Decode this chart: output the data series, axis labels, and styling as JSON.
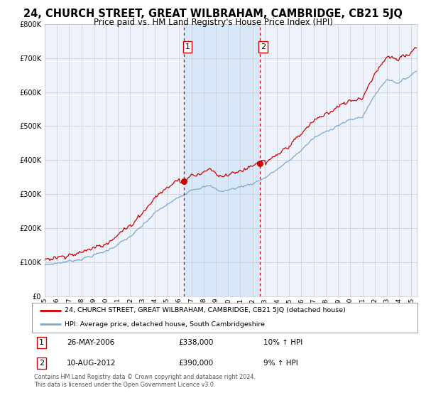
{
  "title": "24, CHURCH STREET, GREAT WILBRAHAM, CAMBRIDGE, CB21 5JQ",
  "subtitle": "Price paid vs. HM Land Registry's House Price Index (HPI)",
  "title_fontsize": 10.5,
  "subtitle_fontsize": 8.5,
  "background_color": "#ffffff",
  "plot_bg_color": "#eef2fa",
  "grid_color": "#c8c8d0",
  "red_line_color": "#cc0000",
  "blue_line_color": "#7aaad0",
  "highlight_color": "#d8e8f8",
  "dashed_line_color": "#cc0000",
  "sale1_date_num": 2006.38,
  "sale1_price": 338000,
  "sale2_date_num": 2012.58,
  "sale2_price": 390000,
  "ylim_min": 0,
  "ylim_max": 800000,
  "xlim_min": 1995.0,
  "xlim_max": 2025.5,
  "legend_entry1": "24, CHURCH STREET, GREAT WILBRAHAM, CAMBRIDGE, CB21 5JQ (detached house)",
  "legend_entry2": "HPI: Average price, detached house, South Cambridgeshire",
  "annotation1_date": "26-MAY-2006",
  "annotation1_price": "£338,000",
  "annotation1_hpi": "10% ↑ HPI",
  "annotation2_date": "10-AUG-2012",
  "annotation2_price": "£390,000",
  "annotation2_hpi": "9% ↑ HPI",
  "footer": "Contains HM Land Registry data © Crown copyright and database right 2024.\nThis data is licensed under the Open Government Licence v3.0."
}
